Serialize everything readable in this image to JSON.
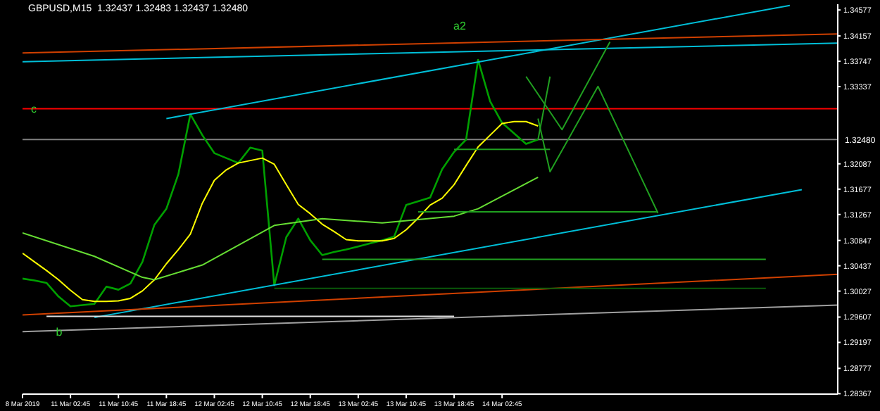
{
  "chart_data": {
    "type": "line",
    "title": "GBPUSD,M15  1.32437 1.32483 1.32437 1.32480",
    "categories": [
      "8 Mar 2019",
      null,
      null,
      null,
      "11 Mar 02:45",
      null,
      null,
      null,
      "11 Mar 10:45",
      null,
      null,
      null,
      "11 Mar 18:45",
      null,
      null,
      null,
      "12 Mar 02:45",
      null,
      null,
      null,
      "12 Mar 10:45",
      null,
      null,
      null,
      "12 Mar 18:45",
      null,
      null,
      null,
      "13 Mar 02:45",
      null,
      null,
      null,
      "13 Mar 10:45",
      null,
      null,
      null,
      "13 Mar 18:45",
      null,
      null,
      null,
      "14 Mar 02:45",
      null,
      null,
      null,
      null,
      null,
      null,
      null,
      null,
      null,
      null,
      null,
      null,
      null,
      null,
      null,
      null,
      null,
      null,
      null,
      null,
      null,
      null,
      null,
      null,
      null,
      null,
      null,
      null
    ],
    "ylim": [
      1.2836,
      1.3467
    ],
    "yticks": [
      1.34577,
      1.34157,
      1.33747,
      1.33337,
      1.32087,
      1.31677,
      1.31267,
      1.30847,
      1.30437,
      1.30027,
      1.29607,
      1.29197,
      1.28777,
      1.28367
    ],
    "grid": false,
    "legend": false,
    "series": [
      {
        "color": "#00a000",
        "values": [
          1.3023,
          1.302,
          1.3016,
          1.2994,
          1.2978,
          1.298,
          1.2982,
          1.301,
          1.3005,
          1.3015,
          1.305,
          1.311,
          1.3136,
          1.3192,
          1.3289,
          1.3255,
          1.3226,
          1.3218,
          1.321,
          1.3235,
          1.323,
          1.3012,
          1.309,
          1.312,
          1.3085,
          1.3061,
          1.3066,
          1.307,
          1.3075,
          1.308,
          1.3085,
          1.3091,
          1.3142,
          1.3148,
          1.3154,
          1.32,
          1.3228,
          1.3248,
          1.3377,
          1.331,
          1.3275,
          1.3258,
          1.3241,
          1.3248,
          null,
          null,
          null,
          null,
          null,
          null,
          null,
          null,
          null,
          null,
          null,
          null,
          null,
          null,
          null,
          null,
          null,
          null,
          null,
          null,
          null,
          null,
          null,
          null,
          null
        ]
      },
      {
        "color": "#ffff00",
        "values": [
          1.3064,
          1.305,
          1.3036,
          1.3021,
          1.3004,
          1.2989,
          1.2986,
          1.2986,
          1.2987,
          1.2991,
          1.3003,
          1.3021,
          1.3047,
          1.307,
          1.3095,
          1.3145,
          1.3182,
          1.3199,
          1.321,
          1.3214,
          1.3218,
          1.3208,
          1.3175,
          1.3143,
          1.3128,
          1.3111,
          1.3099,
          1.3086,
          1.3084,
          1.3084,
          1.3084,
          1.3088,
          1.3102,
          1.3121,
          1.3142,
          1.3153,
          1.3175,
          1.3206,
          1.3236,
          1.3255,
          1.3274,
          1.3277,
          1.3277,
          1.327,
          null,
          null,
          null,
          null,
          null,
          null,
          null,
          null,
          null,
          null,
          null,
          null,
          null,
          null,
          null,
          null,
          null,
          null,
          null,
          null,
          null,
          null,
          null,
          null,
          null
        ]
      },
      {
        "color": "#66dd33",
        "values": [
          1.3097,
          null,
          null,
          null,
          null,
          null,
          1.3059,
          null,
          null,
          null,
          1.3025,
          1.3021,
          null,
          null,
          null,
          1.3045,
          null,
          null,
          null,
          null,
          null,
          1.3109,
          null,
          null,
          null,
          1.312,
          null,
          null,
          null,
          null,
          1.3113,
          null,
          null,
          null,
          null,
          null,
          1.3124,
          null,
          1.3136,
          null,
          null,
          null,
          null,
          1.3187,
          null,
          null,
          null,
          null,
          null,
          null,
          null,
          null,
          null,
          null,
          null,
          null,
          null,
          null,
          null,
          null,
          null,
          null,
          null,
          null,
          null,
          null,
          null,
          null,
          null
        ]
      },
      {
        "color": "#00bfd8",
        "values": [
          null,
          null,
          null,
          null,
          null,
          null,
          null,
          null,
          null,
          null,
          null,
          null,
          1.3282,
          null,
          null,
          null,
          null,
          null,
          null,
          null,
          null,
          null,
          null,
          null,
          null,
          null,
          null,
          null,
          null,
          null,
          null,
          null,
          null,
          null,
          null,
          null,
          null,
          null,
          null,
          null,
          null,
          null,
          null,
          null,
          null,
          null,
          null,
          null,
          null,
          null,
          null,
          null,
          null,
          null,
          null,
          null,
          null,
          null,
          null,
          null,
          null,
          null,
          null,
          null,
          1.3465,
          null,
          null,
          null,
          null
        ]
      },
      {
        "color": "#00bfd8",
        "values": [
          null,
          null,
          null,
          null,
          null,
          null,
          1.296,
          null,
          null,
          null,
          null,
          null,
          null,
          null,
          null,
          null,
          null,
          null,
          null,
          null,
          null,
          null,
          null,
          null,
          null,
          null,
          null,
          null,
          null,
          null,
          null,
          null,
          null,
          null,
          null,
          null,
          null,
          null,
          null,
          null,
          null,
          null,
          null,
          null,
          null,
          null,
          null,
          null,
          null,
          null,
          null,
          null,
          null,
          null,
          null,
          null,
          null,
          null,
          null,
          null,
          null,
          null,
          null,
          null,
          null,
          1.3167,
          null,
          null,
          null
        ]
      },
      {
        "color": "#00bfd8",
        "values": [
          1.3374,
          null,
          null,
          null,
          null,
          null,
          null,
          null,
          null,
          null,
          null,
          null,
          null,
          null,
          null,
          null,
          null,
          null,
          null,
          null,
          null,
          null,
          null,
          null,
          null,
          null,
          null,
          null,
          null,
          null,
          null,
          null,
          null,
          null,
          null,
          null,
          null,
          null,
          null,
          null,
          null,
          null,
          null,
          null,
          null,
          null,
          null,
          null,
          null,
          null,
          null,
          null,
          null,
          null,
          null,
          null,
          null,
          null,
          null,
          null,
          null,
          null,
          null,
          null,
          null,
          null,
          null,
          null,
          1.3404
        ]
      },
      {
        "color": "#d04000",
        "values": [
          1.3388,
          null,
          null,
          null,
          null,
          null,
          null,
          null,
          null,
          null,
          null,
          null,
          null,
          null,
          null,
          null,
          null,
          null,
          null,
          null,
          null,
          null,
          null,
          null,
          null,
          null,
          null,
          null,
          null,
          null,
          null,
          null,
          null,
          null,
          null,
          null,
          null,
          null,
          null,
          null,
          null,
          null,
          null,
          null,
          null,
          null,
          null,
          null,
          null,
          null,
          null,
          null,
          null,
          null,
          null,
          null,
          null,
          null,
          null,
          null,
          null,
          null,
          null,
          null,
          null,
          null,
          null,
          null,
          1.3419
        ]
      },
      {
        "color": "#d04000",
        "values": [
          1.2964,
          null,
          null,
          null,
          null,
          null,
          null,
          null,
          null,
          null,
          null,
          null,
          null,
          null,
          null,
          null,
          null,
          null,
          null,
          null,
          null,
          null,
          null,
          null,
          null,
          null,
          null,
          null,
          null,
          null,
          null,
          null,
          null,
          null,
          null,
          null,
          null,
          null,
          null,
          null,
          null,
          null,
          null,
          null,
          null,
          null,
          null,
          null,
          null,
          null,
          null,
          null,
          null,
          null,
          null,
          null,
          null,
          null,
          null,
          null,
          null,
          null,
          null,
          null,
          null,
          null,
          null,
          null,
          1.303
        ]
      },
      {
        "color": "#e0e0e0",
        "values": [
          null,
          null,
          1.2962,
          null,
          null,
          null,
          null,
          null,
          null,
          null,
          null,
          null,
          null,
          null,
          null,
          null,
          null,
          null,
          null,
          null,
          null,
          null,
          null,
          null,
          null,
          null,
          null,
          null,
          null,
          null,
          null,
          null,
          null,
          null,
          null,
          null,
          1.2962,
          null,
          null,
          null,
          null,
          null,
          null,
          null,
          null,
          null,
          null,
          null,
          null,
          null,
          null,
          null,
          null,
          null,
          null,
          null,
          null,
          null,
          null,
          null,
          null,
          null,
          null,
          null,
          null,
          null,
          null,
          null,
          null
        ]
      },
      {
        "color": "#a0a0a0",
        "values": [
          1.2937,
          null,
          null,
          null,
          null,
          null,
          null,
          null,
          null,
          null,
          null,
          null,
          null,
          null,
          null,
          null,
          null,
          null,
          null,
          null,
          null,
          null,
          null,
          null,
          null,
          null,
          null,
          null,
          null,
          null,
          null,
          null,
          null,
          null,
          null,
          null,
          null,
          null,
          null,
          null,
          null,
          null,
          null,
          null,
          null,
          null,
          null,
          null,
          null,
          null,
          null,
          null,
          null,
          null,
          null,
          null,
          null,
          null,
          null,
          null,
          null,
          null,
          null,
          null,
          null,
          null,
          null,
          null,
          1.298
        ]
      },
      {
        "color": "#20a020",
        "values": [
          null,
          null,
          null,
          null,
          null,
          null,
          null,
          null,
          null,
          null,
          null,
          null,
          null,
          null,
          null,
          null,
          null,
          null,
          null,
          null,
          null,
          null,
          null,
          null,
          null,
          null,
          null,
          null,
          null,
          null,
          null,
          null,
          null,
          1.3131,
          null,
          null,
          null,
          null,
          null,
          null,
          null,
          null,
          null,
          null,
          null,
          null,
          null,
          null,
          null,
          null,
          null,
          null,
          null,
          1.3131,
          null,
          null,
          null,
          null,
          null,
          null,
          null,
          null,
          null,
          null,
          null,
          null,
          null,
          null,
          null
        ]
      },
      {
        "color": "#20a020",
        "values": [
          null,
          null,
          null,
          null,
          null,
          null,
          null,
          null,
          null,
          null,
          null,
          null,
          null,
          null,
          null,
          null,
          null,
          null,
          null,
          null,
          null,
          null,
          null,
          null,
          null,
          1.3054,
          null,
          null,
          null,
          null,
          null,
          null,
          null,
          null,
          null,
          null,
          null,
          null,
          null,
          null,
          null,
          null,
          null,
          null,
          null,
          null,
          null,
          null,
          null,
          null,
          null,
          null,
          null,
          null,
          null,
          null,
          null,
          null,
          null,
          null,
          null,
          null,
          1.3054,
          null,
          null,
          null,
          null,
          null,
          null
        ]
      },
      {
        "color": "#0a5a0a",
        "values": [
          null,
          null,
          null,
          null,
          null,
          null,
          null,
          null,
          null,
          null,
          null,
          null,
          null,
          null,
          null,
          null,
          null,
          null,
          null,
          null,
          null,
          1.3007,
          null,
          null,
          null,
          null,
          null,
          null,
          null,
          null,
          null,
          null,
          null,
          null,
          null,
          null,
          null,
          null,
          null,
          null,
          null,
          null,
          null,
          null,
          null,
          null,
          null,
          null,
          null,
          null,
          null,
          null,
          null,
          null,
          null,
          null,
          null,
          null,
          null,
          null,
          null,
          null,
          1.3007,
          null,
          null,
          null,
          null,
          null,
          null
        ]
      },
      {
        "color": "#20a020",
        "values": [
          null,
          null,
          null,
          null,
          null,
          null,
          null,
          null,
          null,
          null,
          null,
          null,
          null,
          null,
          null,
          null,
          null,
          null,
          null,
          null,
          null,
          null,
          null,
          null,
          null,
          null,
          null,
          null,
          null,
          null,
          null,
          null,
          null,
          null,
          null,
          null,
          1.3232,
          null,
          null,
          null,
          null,
          null,
          null,
          null,
          1.3232,
          null,
          null,
          null,
          null,
          null,
          null,
          null,
          null,
          null,
          null,
          null,
          null,
          null,
          null,
          null,
          null,
          null,
          null,
          null,
          null,
          null,
          null,
          null,
          null
        ]
      },
      {
        "color": "#20a020",
        "values": [
          null,
          null,
          null,
          null,
          null,
          null,
          null,
          null,
          null,
          null,
          null,
          null,
          null,
          null,
          null,
          null,
          null,
          null,
          null,
          null,
          null,
          null,
          null,
          null,
          null,
          null,
          null,
          null,
          null,
          null,
          null,
          null,
          null,
          null,
          null,
          null,
          null,
          null,
          null,
          null,
          null,
          null,
          1.335,
          null,
          null,
          1.3264,
          null,
          null,
          null,
          1.3406,
          null,
          null,
          null,
          null,
          null,
          null,
          null,
          null,
          null,
          null,
          null,
          null,
          null,
          null,
          null,
          null,
          null,
          null,
          null
        ]
      },
      {
        "color": "#20a020",
        "values": [
          null,
          null,
          null,
          null,
          null,
          null,
          null,
          null,
          null,
          null,
          null,
          null,
          null,
          null,
          null,
          null,
          null,
          null,
          null,
          null,
          null,
          null,
          null,
          null,
          null,
          null,
          null,
          null,
          null,
          null,
          null,
          null,
          null,
          null,
          null,
          null,
          null,
          null,
          null,
          null,
          null,
          null,
          null,
          1.3248,
          1.335,
          null,
          null,
          null,
          null,
          null,
          null,
          null,
          null,
          null,
          null,
          null,
          null,
          null,
          null,
          null,
          null,
          null,
          null,
          null,
          null,
          null,
          null,
          null,
          null
        ]
      },
      {
        "color": "#20a020",
        "values": [
          null,
          null,
          null,
          null,
          null,
          null,
          null,
          null,
          null,
          null,
          null,
          null,
          null,
          null,
          null,
          null,
          null,
          null,
          null,
          null,
          null,
          null,
          null,
          null,
          null,
          null,
          null,
          null,
          null,
          null,
          null,
          null,
          null,
          null,
          null,
          null,
          null,
          null,
          null,
          null,
          null,
          null,
          null,
          1.3282,
          1.3196,
          null,
          null,
          null,
          1.3334,
          null,
          null,
          null,
          null,
          1.3129,
          null,
          null,
          null,
          null,
          null,
          null,
          null,
          null,
          null,
          null,
          null,
          null,
          null,
          null,
          null
        ]
      }
    ],
    "ref_lines": [
      {
        "axis": "y",
        "value": 1.3298,
        "color": "#ff0000"
      },
      {
        "axis": "y",
        "value": 1.3248,
        "color": "#808080",
        "label": "1.32480"
      }
    ],
    "annotations": [
      "a2",
      {
        "text": "c",
        "y": 1.3298
      },
      {
        "text": "b",
        "y": 1.2937
      }
    ]
  }
}
